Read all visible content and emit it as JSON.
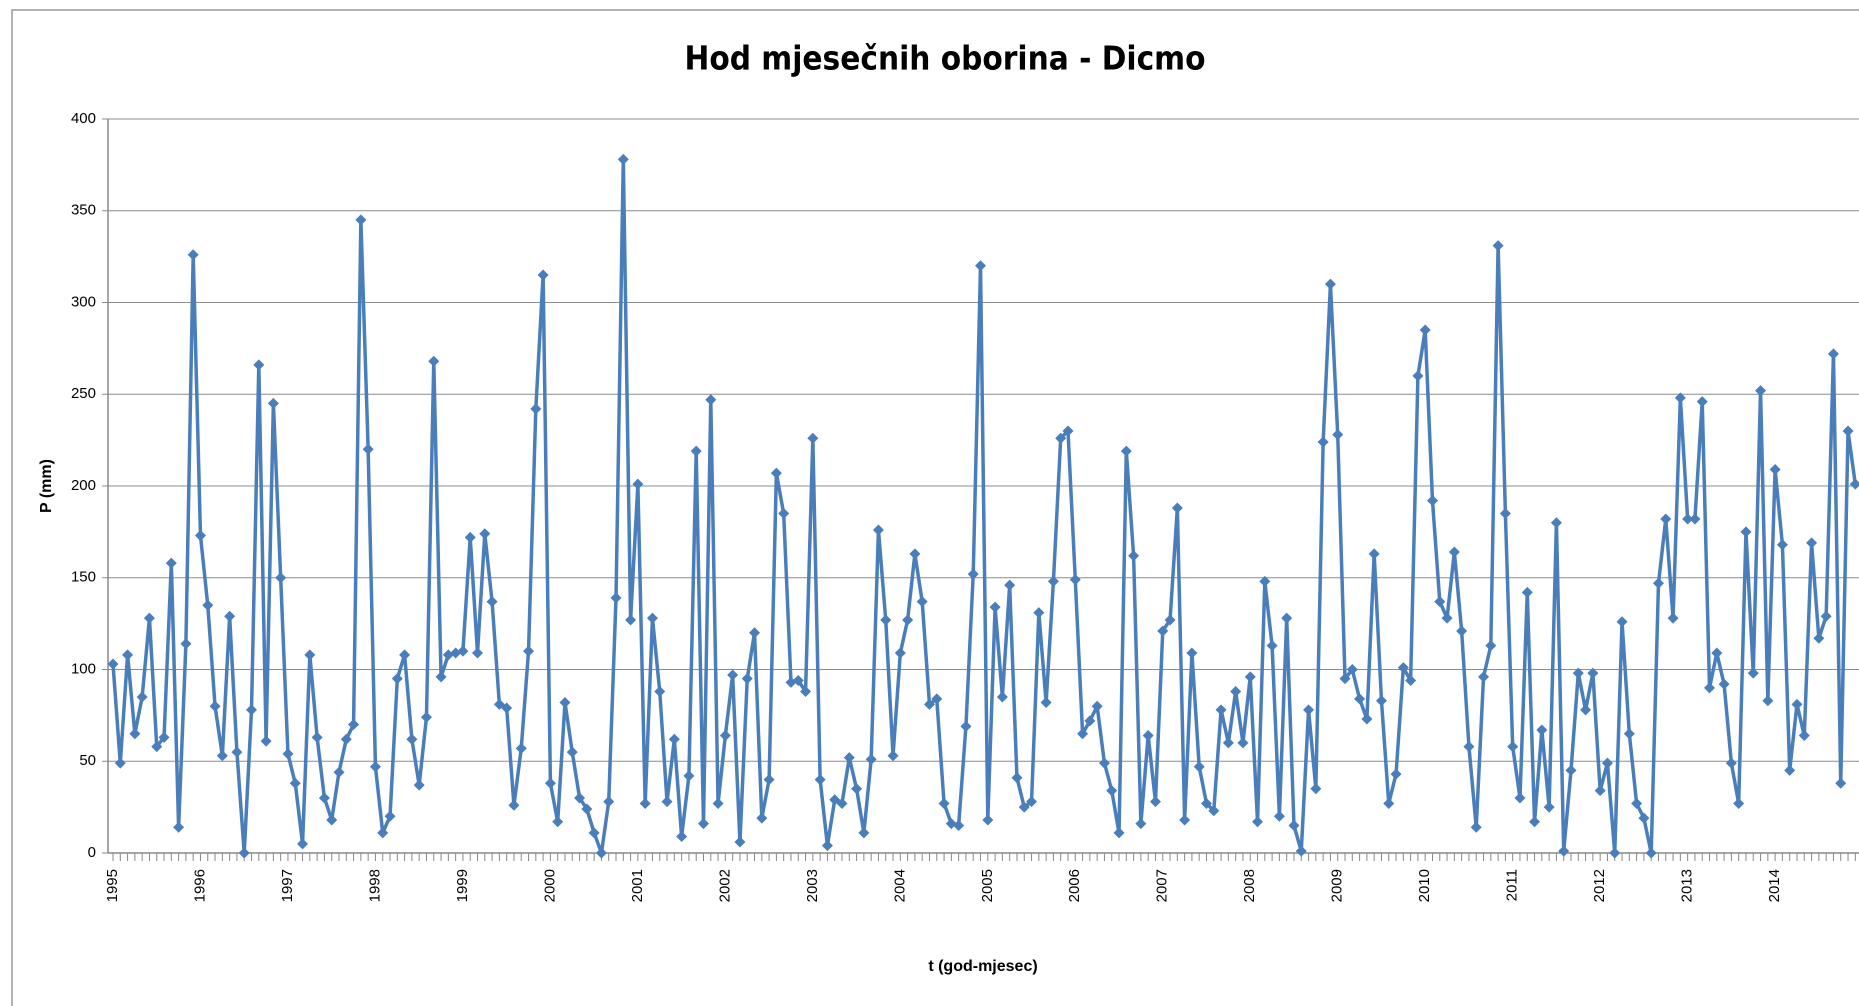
{
  "chart_data": {
    "type": "line",
    "title": "Hod mjesečnih oborina - Dicmo",
    "x_label": "t (god-mjesec)",
    "y_label": "P (mm)",
    "categories": [
      "1995",
      null,
      null,
      null,
      null,
      null,
      null,
      null,
      null,
      null,
      null,
      null,
      "1996",
      null,
      null,
      null,
      null,
      null,
      null,
      null,
      null,
      null,
      null,
      null,
      "1997",
      null,
      null,
      null,
      null,
      null,
      null,
      null,
      null,
      null,
      null,
      null,
      "1998",
      null,
      null,
      null,
      null,
      null,
      null,
      null,
      null,
      null,
      null,
      null,
      "1999",
      null,
      null,
      null,
      null,
      null,
      null,
      null,
      null,
      null,
      null,
      null,
      "2000",
      null,
      null,
      null,
      null,
      null,
      null,
      null,
      null,
      null,
      null,
      null,
      "2001",
      null,
      null,
      null,
      null,
      null,
      null,
      null,
      null,
      null,
      null,
      null,
      "2002",
      null,
      null,
      null,
      null,
      null,
      null,
      null,
      null,
      null,
      null,
      null,
      "2003",
      null,
      null,
      null,
      null,
      null,
      null,
      null,
      null,
      null,
      null,
      null,
      "2004",
      null,
      null,
      null,
      null,
      null,
      null,
      null,
      null,
      null,
      null,
      null,
      "2005",
      null,
      null,
      null,
      null,
      null,
      null,
      null,
      null,
      null,
      null,
      null,
      "2006",
      null,
      null,
      null,
      null,
      null,
      null,
      null,
      null,
      null,
      null,
      null,
      "2007",
      null,
      null,
      null,
      null,
      null,
      null,
      null,
      null,
      null,
      null,
      null,
      "2008",
      null,
      null,
      null,
      null,
      null,
      null,
      null,
      null,
      null,
      null,
      null,
      "2009",
      null,
      null,
      null,
      null,
      null,
      null,
      null,
      null,
      null,
      null,
      null,
      "2010",
      null,
      null,
      null,
      null,
      null,
      null,
      null,
      null,
      null,
      null,
      null,
      "2011",
      null,
      null,
      null,
      null,
      null,
      null,
      null,
      null,
      null,
      null,
      null,
      "2012",
      null,
      null,
      null,
      null,
      null,
      null,
      null,
      null,
      null,
      null,
      null,
      "2013",
      null,
      null,
      null,
      null,
      null,
      null,
      null,
      null,
      null,
      null,
      null,
      "2014",
      null,
      null,
      null,
      null,
      null,
      null,
      null,
      null,
      null,
      null,
      null
    ],
    "series": [
      {
        "color": "#4a7ebb",
        "values": [
          103,
          49,
          108,
          65,
          85,
          128,
          58,
          63,
          158,
          14,
          114,
          326,
          173,
          135,
          80,
          53,
          129,
          55,
          0,
          78,
          266,
          61,
          245,
          150,
          54,
          38,
          5,
          108,
          63,
          30,
          18,
          44,
          62,
          70,
          345,
          220,
          47,
          11,
          20,
          95,
          108,
          62,
          37,
          74,
          268,
          96,
          108,
          109,
          110,
          172,
          109,
          174,
          137,
          81,
          79,
          26,
          57,
          110,
          242,
          315,
          38,
          17,
          82,
          55,
          30,
          24,
          11,
          0,
          28,
          139,
          378,
          127,
          201,
          27,
          128,
          88,
          28,
          62,
          9,
          42,
          219,
          16,
          247,
          27,
          64,
          97,
          6,
          95,
          120,
          19,
          40,
          207,
          185,
          93,
          94,
          88,
          226,
          40,
          4,
          29,
          27,
          52,
          35,
          11,
          51,
          176,
          127,
          53,
          109,
          127,
          163,
          137,
          81,
          84,
          27,
          16,
          15,
          69,
          152,
          320,
          18,
          134,
          85,
          146,
          41,
          25,
          28,
          131,
          82,
          148,
          226,
          230,
          149,
          65,
          72,
          80,
          49,
          34,
          11,
          219,
          162,
          16,
          64,
          28,
          121,
          127,
          188,
          18,
          109,
          47,
          27,
          23,
          78,
          60,
          88,
          60,
          96,
          17,
          148,
          113,
          20,
          128,
          15,
          1,
          78,
          35,
          224,
          310,
          228,
          95,
          100,
          84,
          73,
          163,
          83,
          27,
          43,
          101,
          94,
          260,
          285,
          192,
          137,
          128,
          164,
          121,
          58,
          14,
          96,
          113,
          331,
          185,
          58,
          30,
          142,
          17,
          67,
          25,
          180,
          1,
          45,
          98,
          78,
          98,
          34,
          49,
          0,
          126,
          65,
          27,
          19,
          0,
          147,
          182,
          128,
          248,
          182,
          182,
          246,
          90,
          109,
          92,
          49,
          27,
          175,
          98,
          252,
          83,
          209,
          168,
          45,
          81,
          64,
          169,
          117,
          129,
          272,
          38,
          230,
          201
        ]
      }
    ],
    "ylim": [
      0,
      400
    ],
    "yticks": [
      0,
      50,
      100,
      150,
      200,
      250,
      300,
      350,
      400
    ],
    "grid": true
  }
}
